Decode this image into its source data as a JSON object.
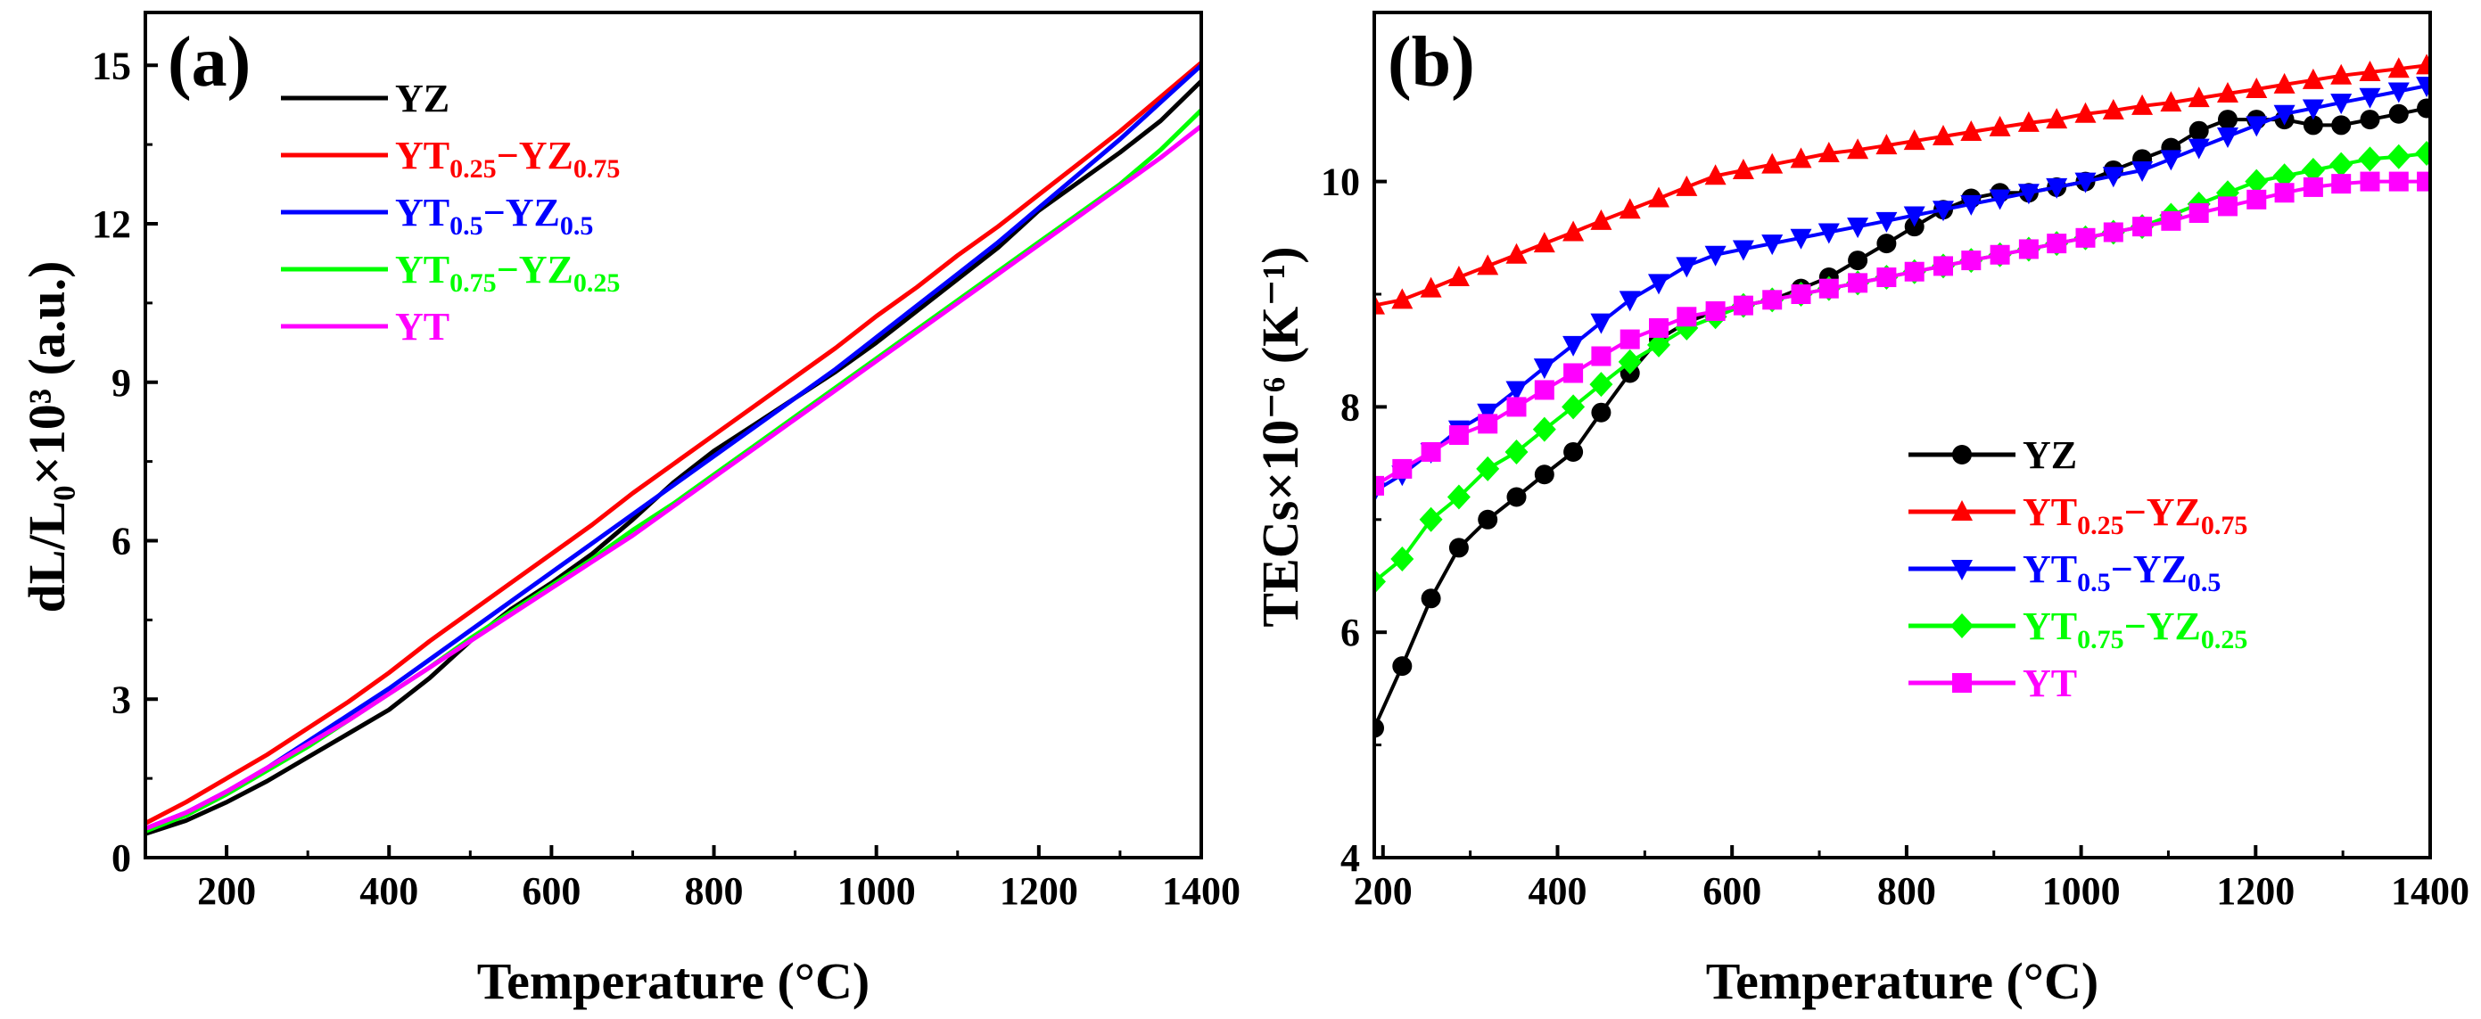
{
  "colors": {
    "YZ": "#000000",
    "YT0.25": "#ff0000",
    "YT0.5": "#0000ff",
    "YT0.75": "#00ff00",
    "YT": "#ff00ff"
  },
  "chart_data": [
    {
      "type": "line",
      "panel_label": "(a)",
      "xlabel": "Temperature (°C)",
      "ylabel": "dL/L₀×10³ (a.u.)",
      "xlim": [
        100,
        1400
      ],
      "ylim": [
        0,
        16
      ],
      "xticks": [
        200,
        400,
        600,
        800,
        1000,
        1200,
        1400
      ],
      "yticks": [
        0,
        3,
        6,
        9,
        12,
        15
      ],
      "legend_position": "top-left",
      "series": [
        {
          "key": "YZ",
          "legend": {
            "main": "YZ"
          },
          "color": "#000000",
          "x": [
            100,
            150,
            200,
            250,
            300,
            350,
            400,
            450,
            500,
            550,
            600,
            650,
            700,
            750,
            800,
            850,
            900,
            950,
            1000,
            1050,
            1100,
            1150,
            1200,
            1250,
            1300,
            1350,
            1400
          ],
          "y": [
            0.45,
            0.7,
            1.05,
            1.45,
            1.9,
            2.35,
            2.8,
            3.4,
            4.1,
            4.7,
            5.2,
            5.75,
            6.4,
            7.1,
            7.7,
            8.2,
            8.7,
            9.2,
            9.75,
            10.35,
            10.95,
            11.55,
            12.25,
            12.8,
            13.35,
            13.95,
            14.7
          ]
        },
        {
          "key": "YT0.25",
          "legend": {
            "main": "YT",
            "sub1": "0.25",
            "mid": "−YZ",
            "sub2": "0.75"
          },
          "color": "#ff0000",
          "x": [
            100,
            150,
            200,
            250,
            300,
            350,
            400,
            450,
            500,
            550,
            600,
            650,
            700,
            750,
            800,
            850,
            900,
            950,
            1000,
            1050,
            1100,
            1150,
            1200,
            1250,
            1300,
            1350,
            1400
          ],
          "y": [
            0.65,
            1.05,
            1.5,
            1.95,
            2.45,
            2.95,
            3.5,
            4.1,
            4.65,
            5.2,
            5.75,
            6.3,
            6.9,
            7.45,
            8.0,
            8.55,
            9.1,
            9.65,
            10.25,
            10.8,
            11.4,
            11.95,
            12.55,
            13.15,
            13.75,
            14.4,
            15.05
          ]
        },
        {
          "key": "YT0.5",
          "legend": {
            "main": "YT",
            "sub1": "0.5",
            "mid": "−YZ",
            "sub2": "0.5"
          },
          "color": "#0000ff",
          "x": [
            100,
            150,
            200,
            250,
            300,
            350,
            400,
            450,
            500,
            550,
            600,
            650,
            700,
            750,
            800,
            850,
            900,
            950,
            1000,
            1050,
            1100,
            1150,
            1200,
            1250,
            1300,
            1350,
            1400
          ],
          "y": [
            0.55,
            0.85,
            1.25,
            1.7,
            2.2,
            2.7,
            3.2,
            3.75,
            4.3,
            4.85,
            5.4,
            5.95,
            6.5,
            7.05,
            7.6,
            8.15,
            8.7,
            9.25,
            9.85,
            10.45,
            11.05,
            11.65,
            12.3,
            12.95,
            13.6,
            14.3,
            15.0
          ]
        },
        {
          "key": "YT0.75",
          "legend": {
            "main": "YT",
            "sub1": "0.75",
            "mid": "−YZ",
            "sub2": "0.25"
          },
          "color": "#00ff00",
          "x": [
            100,
            150,
            200,
            250,
            300,
            350,
            400,
            450,
            500,
            550,
            600,
            650,
            700,
            750,
            800,
            850,
            900,
            950,
            1000,
            1050,
            1100,
            1150,
            1200,
            1250,
            1300,
            1350,
            1400
          ],
          "y": [
            0.5,
            0.8,
            1.2,
            1.65,
            2.1,
            2.6,
            3.1,
            3.6,
            4.15,
            4.65,
            5.15,
            5.65,
            6.2,
            6.7,
            7.25,
            7.8,
            8.35,
            8.9,
            9.45,
            10.0,
            10.55,
            11.1,
            11.65,
            12.2,
            12.75,
            13.4,
            14.15
          ]
        },
        {
          "key": "YT",
          "legend": {
            "main": "YT"
          },
          "color": "#ff00ff",
          "x": [
            100,
            150,
            200,
            250,
            300,
            350,
            400,
            450,
            500,
            550,
            600,
            650,
            700,
            750,
            800,
            850,
            900,
            950,
            1000,
            1050,
            1100,
            1150,
            1200,
            1250,
            1300,
            1350,
            1400
          ],
          "y": [
            0.55,
            0.85,
            1.25,
            1.7,
            2.15,
            2.6,
            3.1,
            3.6,
            4.1,
            4.6,
            5.1,
            5.6,
            6.1,
            6.65,
            7.2,
            7.75,
            8.3,
            8.85,
            9.4,
            9.95,
            10.5,
            11.05,
            11.6,
            12.15,
            12.7,
            13.25,
            13.85
          ]
        }
      ]
    },
    {
      "type": "line",
      "panel_label": "(b)",
      "xlabel": "Temperature (°C)",
      "ylabel": "TECs×10⁻⁶ (K⁻¹)",
      "xlim": [
        190,
        1400
      ],
      "ylim": [
        4,
        11.5
      ],
      "xticks": [
        200,
        400,
        600,
        800,
        1000,
        1200,
        1400
      ],
      "yticks": [
        4,
        6,
        8,
        10
      ],
      "legend_position": "bottom-right",
      "series": [
        {
          "key": "YZ",
          "marker": "circle",
          "legend": {
            "main": "YZ"
          },
          "color": "#000000",
          "x": [
            190,
            222,
            255,
            287,
            320,
            353,
            385,
            418,
            450,
            483,
            516,
            548,
            581,
            613,
            646,
            679,
            711,
            744,
            777,
            809,
            842,
            874,
            907,
            940,
            972,
            1005,
            1037,
            1070,
            1103,
            1135,
            1168,
            1201,
            1233,
            1266,
            1298,
            1331,
            1364,
            1396
          ],
          "y": [
            5.15,
            5.7,
            6.3,
            6.75,
            7.0,
            7.2,
            7.4,
            7.6,
            7.95,
            8.3,
            8.6,
            8.75,
            8.85,
            8.9,
            8.95,
            9.05,
            9.15,
            9.3,
            9.45,
            9.6,
            9.75,
            9.85,
            9.9,
            9.9,
            9.95,
            10.0,
            10.1,
            10.2,
            10.3,
            10.45,
            10.55,
            10.55,
            10.55,
            10.5,
            10.5,
            10.55,
            10.6,
            10.65
          ]
        },
        {
          "key": "YT0.25",
          "marker": "triangle-up",
          "legend": {
            "main": "YT",
            "sub1": "0.25",
            "mid": "−YZ",
            "sub2": "0.75"
          },
          "color": "#ff0000",
          "x": [
            190,
            222,
            255,
            287,
            320,
            353,
            385,
            418,
            450,
            483,
            516,
            548,
            581,
            613,
            646,
            679,
            711,
            744,
            777,
            809,
            842,
            874,
            907,
            940,
            972,
            1005,
            1037,
            1070,
            1103,
            1135,
            1168,
            1201,
            1233,
            1266,
            1298,
            1331,
            1364,
            1396
          ],
          "y": [
            8.9,
            8.95,
            9.05,
            9.15,
            9.25,
            9.35,
            9.45,
            9.55,
            9.65,
            9.75,
            9.85,
            9.95,
            10.05,
            10.1,
            10.15,
            10.2,
            10.25,
            10.28,
            10.32,
            10.36,
            10.4,
            10.44,
            10.48,
            10.52,
            10.55,
            10.6,
            10.63,
            10.67,
            10.7,
            10.74,
            10.78,
            10.82,
            10.86,
            10.9,
            10.94,
            10.97,
            11.0,
            11.03
          ]
        },
        {
          "key": "YT0.5",
          "marker": "triangle-down",
          "legend": {
            "main": "YT",
            "sub1": "0.5",
            "mid": "−YZ",
            "sub2": "0.5"
          },
          "color": "#0000ff",
          "x": [
            190,
            222,
            255,
            287,
            320,
            353,
            385,
            418,
            450,
            483,
            516,
            548,
            581,
            613,
            646,
            679,
            711,
            744,
            777,
            809,
            842,
            874,
            907,
            940,
            972,
            1005,
            1037,
            1070,
            1103,
            1135,
            1168,
            1201,
            1233,
            1266,
            1298,
            1331,
            1364,
            1396
          ],
          "y": [
            7.25,
            7.4,
            7.6,
            7.8,
            7.95,
            8.15,
            8.35,
            8.55,
            8.75,
            8.95,
            9.1,
            9.25,
            9.35,
            9.4,
            9.45,
            9.5,
            9.55,
            9.6,
            9.65,
            9.7,
            9.75,
            9.8,
            9.85,
            9.9,
            9.95,
            10.0,
            10.05,
            10.1,
            10.2,
            10.3,
            10.4,
            10.5,
            10.6,
            10.65,
            10.7,
            10.75,
            10.8,
            10.85
          ]
        },
        {
          "key": "YT0.75",
          "marker": "diamond",
          "legend": {
            "main": "YT",
            "sub1": "0.75",
            "mid": "−YZ",
            "sub2": "0.25"
          },
          "color": "#00ff00",
          "x": [
            190,
            222,
            255,
            287,
            320,
            353,
            385,
            418,
            450,
            483,
            516,
            548,
            581,
            613,
            646,
            679,
            711,
            744,
            777,
            809,
            842,
            874,
            907,
            940,
            972,
            1005,
            1037,
            1070,
            1103,
            1135,
            1168,
            1201,
            1233,
            1266,
            1298,
            1331,
            1364,
            1396
          ],
          "y": [
            6.45,
            6.65,
            7.0,
            7.2,
            7.45,
            7.6,
            7.8,
            8.0,
            8.2,
            8.4,
            8.55,
            8.7,
            8.8,
            8.9,
            8.95,
            9.0,
            9.05,
            9.1,
            9.15,
            9.2,
            9.25,
            9.3,
            9.35,
            9.4,
            9.45,
            9.5,
            9.55,
            9.6,
            9.7,
            9.8,
            9.9,
            10.0,
            10.05,
            10.1,
            10.15,
            10.2,
            10.22,
            10.25
          ]
        },
        {
          "key": "YT",
          "marker": "square",
          "legend": {
            "main": "YT"
          },
          "color": "#ff00ff",
          "x": [
            190,
            222,
            255,
            287,
            320,
            353,
            385,
            418,
            450,
            483,
            516,
            548,
            581,
            613,
            646,
            679,
            711,
            744,
            777,
            809,
            842,
            874,
            907,
            940,
            972,
            1005,
            1037,
            1070,
            1103,
            1135,
            1168,
            1201,
            1233,
            1266,
            1298,
            1331,
            1364,
            1396
          ],
          "y": [
            7.3,
            7.45,
            7.6,
            7.75,
            7.85,
            8.0,
            8.15,
            8.3,
            8.45,
            8.6,
            8.7,
            8.8,
            8.85,
            8.9,
            8.95,
            9.0,
            9.05,
            9.1,
            9.15,
            9.2,
            9.25,
            9.3,
            9.35,
            9.4,
            9.45,
            9.5,
            9.55,
            9.6,
            9.65,
            9.72,
            9.78,
            9.84,
            9.9,
            9.95,
            9.98,
            10.0,
            10.0,
            10.0
          ]
        }
      ]
    }
  ]
}
